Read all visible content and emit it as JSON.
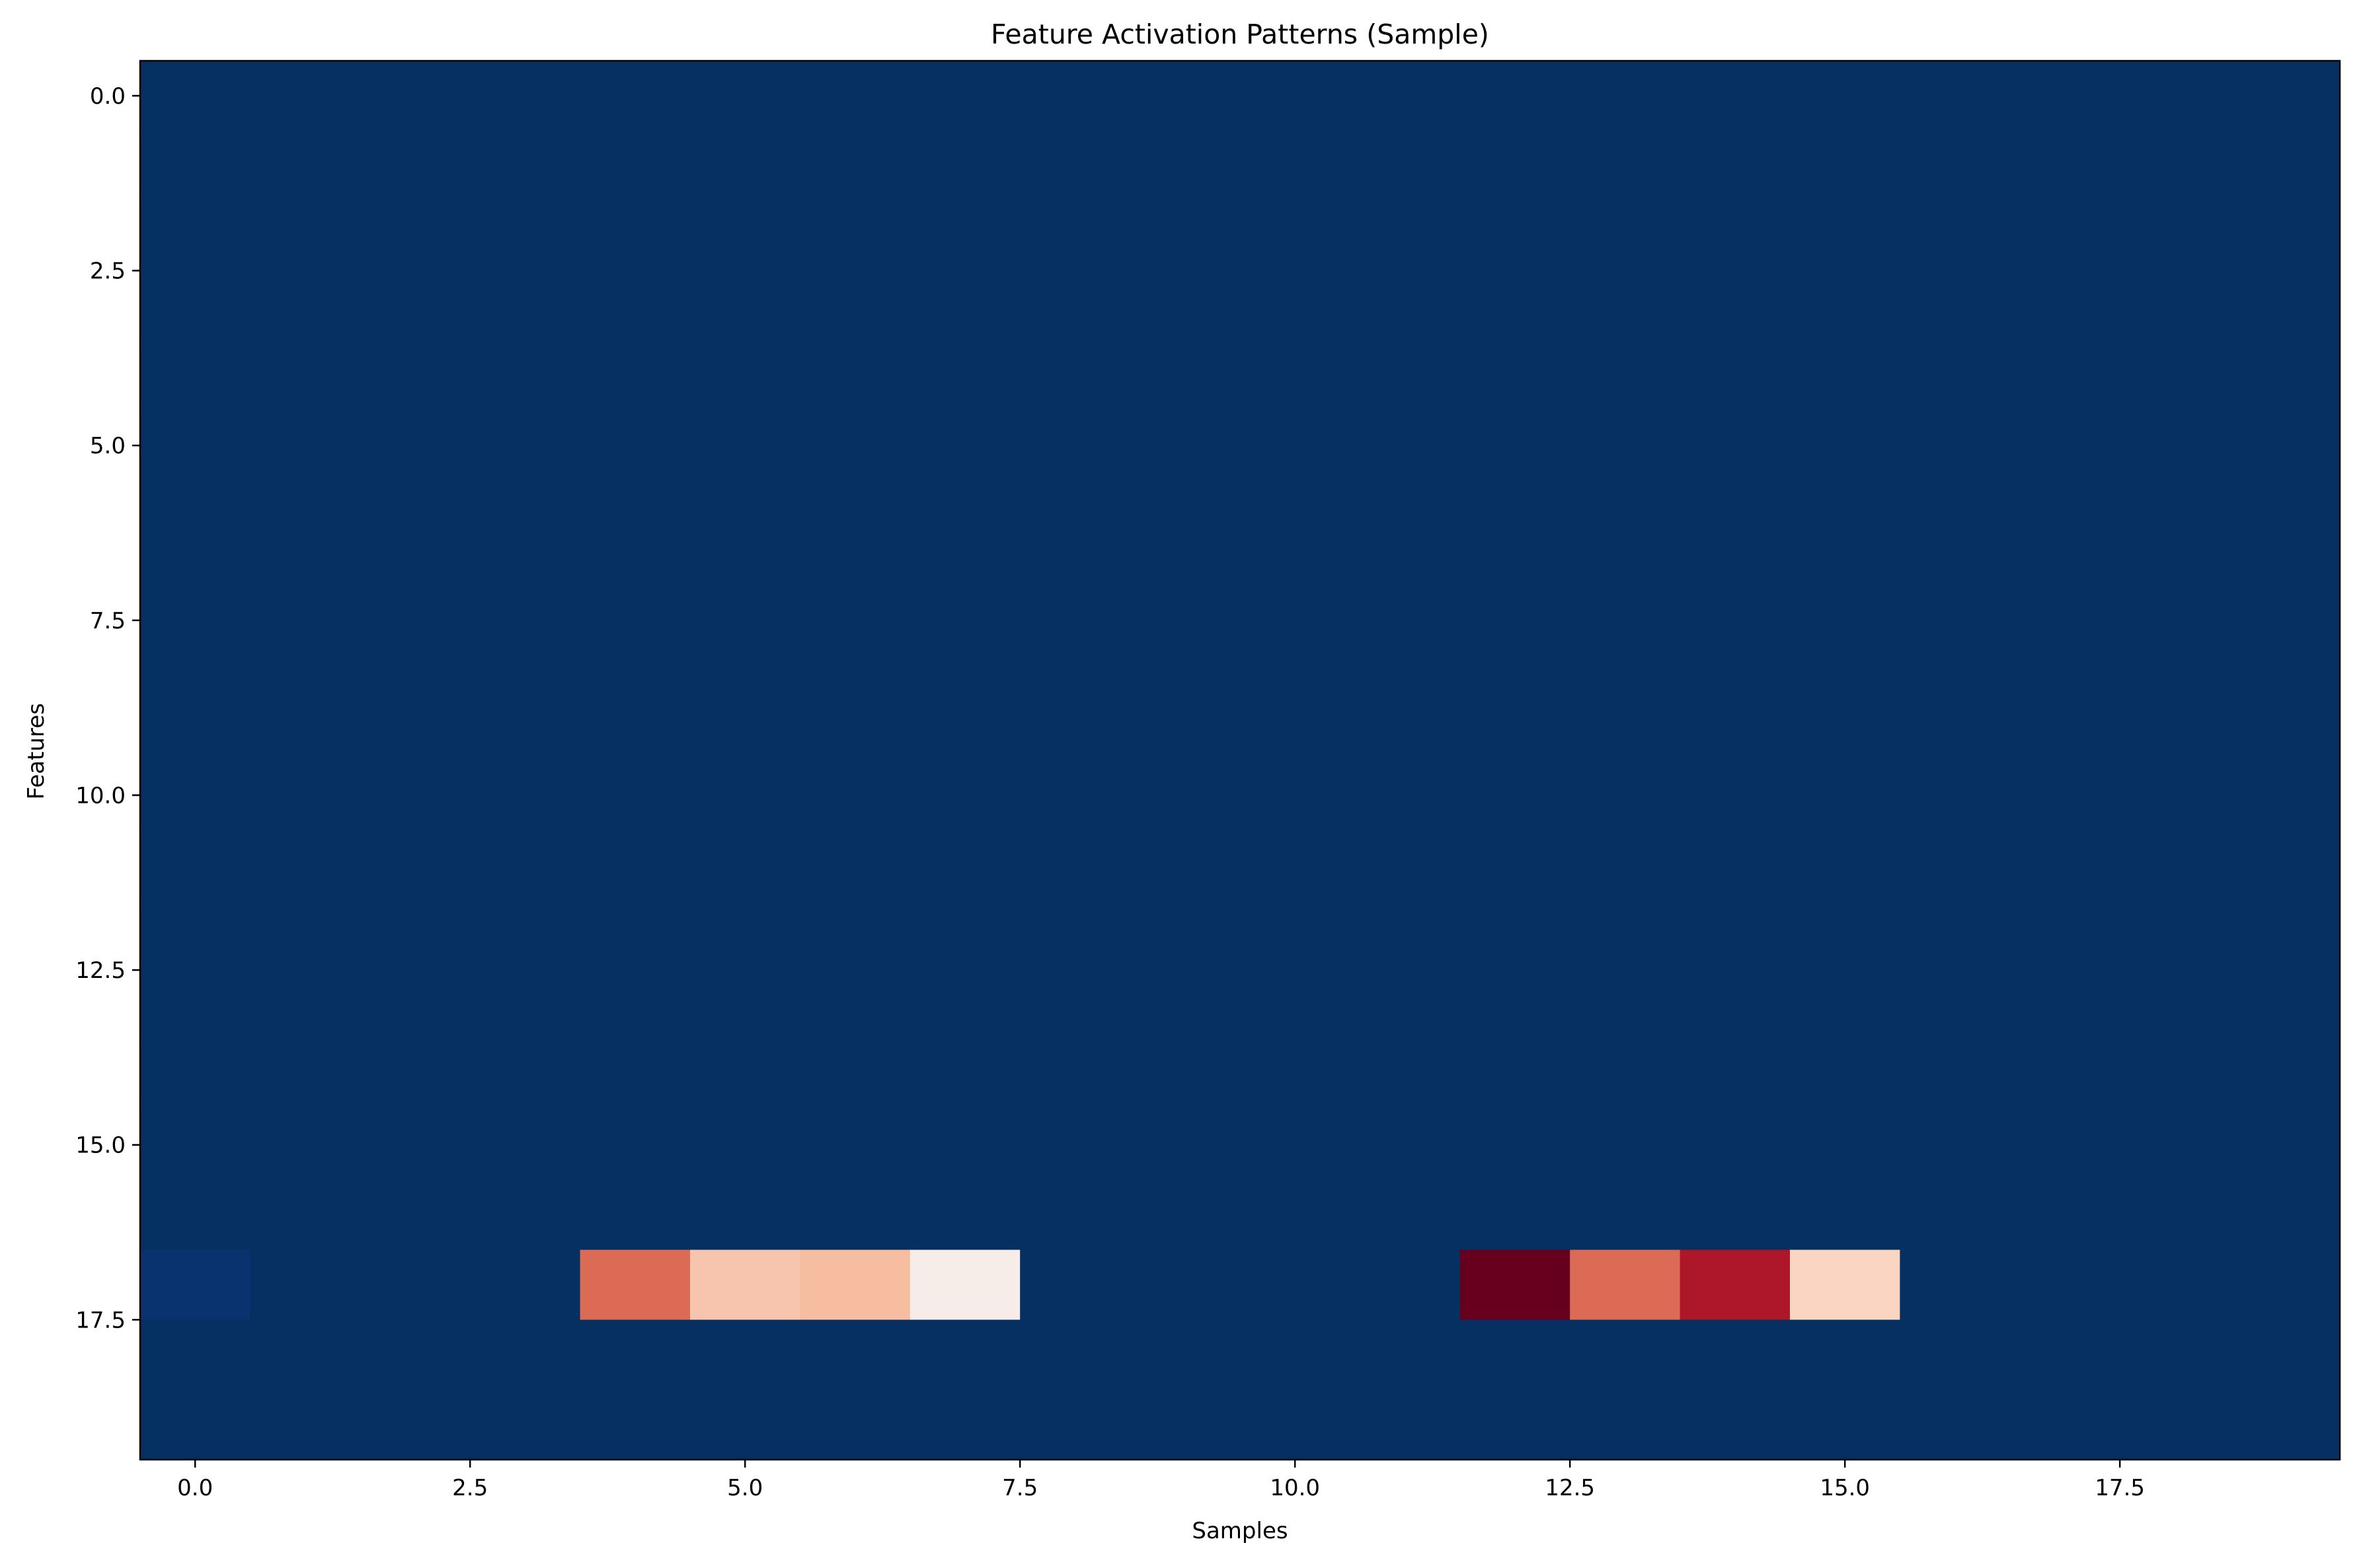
{
  "chart_data": {
    "type": "heatmap",
    "title": "Feature Activation Patterns (Sample)",
    "xlabel": "Samples",
    "ylabel": "Features",
    "xlim": [
      -0.5,
      19.5
    ],
    "ylim": [
      19.5,
      -0.5
    ],
    "y_axis_inverted": true,
    "grid": false,
    "colormap": "RdBu_r",
    "n_rows": 20,
    "n_cols": 20,
    "background_color": "#053061",
    "x_ticks": [
      "0.0",
      "2.5",
      "5.0",
      "7.5",
      "10.0",
      "12.5",
      "15.0",
      "17.5"
    ],
    "x_tick_values": [
      0,
      2.5,
      5,
      7.5,
      10,
      12.5,
      15,
      17.5
    ],
    "y_ticks": [
      "0.0",
      "2.5",
      "5.0",
      "7.5",
      "10.0",
      "12.5",
      "15.0",
      "17.5"
    ],
    "y_tick_values": [
      0,
      2.5,
      5,
      7.5,
      10,
      12.5,
      15,
      17.5
    ],
    "highlighted_cells": [
      {
        "row": 17,
        "col": 0,
        "color": "#08336e"
      },
      {
        "row": 17,
        "col": 4,
        "color": "#dc6b55"
      },
      {
        "row": 17,
        "col": 5,
        "color": "#f7c5ae"
      },
      {
        "row": 17,
        "col": 6,
        "color": "#f6bda0"
      },
      {
        "row": 17,
        "col": 7,
        "color": "#f6ede8"
      },
      {
        "row": 17,
        "col": 12,
        "color": "#67001f"
      },
      {
        "row": 17,
        "col": 13,
        "color": "#dc6b55"
      },
      {
        "row": 17,
        "col": 14,
        "color": "#ae172a"
      },
      {
        "row": 17,
        "col": 15,
        "color": "#fad5c2"
      }
    ]
  }
}
